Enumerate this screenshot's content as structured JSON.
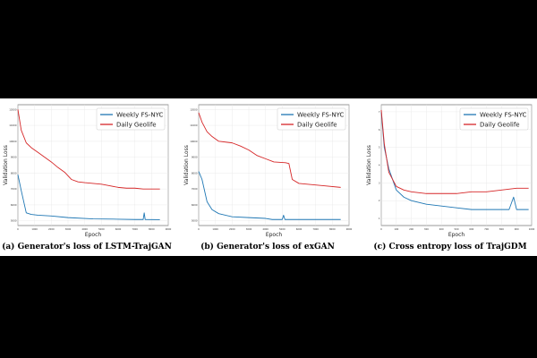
{
  "colors": {
    "weekly": "#1f77b4",
    "daily": "#d62728"
  },
  "charts": [
    {
      "caption": "(a) Generator's loss of LSTM-TrajGAN"
    },
    {
      "caption": "(b) Generator's loss of exGAN"
    },
    {
      "caption": "(c) Cross entropy loss of TrajGDM"
    }
  ],
  "chart_data": [
    {
      "type": "line",
      "xlabel": "Epoch",
      "ylabel": "Validation Loss",
      "xlim": [
        0,
        9000
      ],
      "ylim": [
        4700,
        12300
      ],
      "xticks": [
        0,
        1000,
        2000,
        3000,
        4000,
        5000,
        6000,
        7000,
        8000,
        9000
      ],
      "yticks": [
        5000,
        6000,
        7000,
        8000,
        9000,
        10000,
        11000,
        12000
      ],
      "legend": "top-right",
      "grid": true,
      "series": [
        {
          "name": "Weekly FS-NYC",
          "x": [
            0,
            200,
            500,
            800,
            1200,
            2000,
            3000,
            4500,
            6000,
            7000,
            7500,
            7560,
            7620,
            8500
          ],
          "y": [
            7900,
            6900,
            5500,
            5400,
            5350,
            5300,
            5200,
            5120,
            5100,
            5080,
            5080,
            5500,
            5080,
            5070
          ]
        },
        {
          "name": "Daily Geolife",
          "x": [
            0,
            200,
            500,
            800,
            1200,
            1600,
            2000,
            2400,
            2800,
            3200,
            3600,
            4000,
            4500,
            5000,
            5500,
            6000,
            6500,
            7000,
            7500,
            8000,
            8500
          ],
          "y": [
            12000,
            10700,
            9900,
            9600,
            9300,
            9000,
            8700,
            8350,
            8050,
            7600,
            7450,
            7400,
            7350,
            7300,
            7200,
            7100,
            7050,
            7050,
            7000,
            7000,
            7000
          ]
        }
      ]
    },
    {
      "type": "line",
      "xlabel": "Epoch",
      "ylabel": "Validation Loss",
      "xlim": [
        0,
        9000
      ],
      "ylim": [
        4700,
        12300
      ],
      "xticks": [
        0,
        1000,
        2000,
        3000,
        4000,
        5000,
        6000,
        7000,
        8000,
        9000
      ],
      "yticks": [
        5000,
        6000,
        7000,
        8000,
        9000,
        10000,
        11000,
        12000
      ],
      "legend": "top-right",
      "grid": true,
      "series": [
        {
          "name": "Weekly FS-NYC",
          "x": [
            0,
            200,
            500,
            800,
            1200,
            2000,
            3000,
            4000,
            4400,
            5000,
            5080,
            5160,
            6000,
            7000,
            8500
          ],
          "y": [
            8100,
            7600,
            6200,
            5700,
            5450,
            5250,
            5200,
            5150,
            5080,
            5080,
            5350,
            5080,
            5080,
            5080,
            5080
          ]
        },
        {
          "name": "Daily Geolife",
          "x": [
            0,
            200,
            500,
            800,
            1200,
            2000,
            2500,
            3000,
            3500,
            4000,
            4500,
            5200,
            5400,
            5600,
            6000,
            6500,
            7000,
            7500,
            8500
          ],
          "y": [
            11800,
            11200,
            10600,
            10300,
            10000,
            9900,
            9700,
            9450,
            9100,
            8900,
            8700,
            8650,
            8600,
            7600,
            7350,
            7300,
            7250,
            7200,
            7100
          ]
        }
      ]
    },
    {
      "type": "line",
      "xlabel": "Epoch",
      "ylabel": "Validation Loss",
      "xlim": [
        0,
        1000
      ],
      "ylim": [
        0.6,
        7.4
      ],
      "xticks": [
        0,
        100,
        200,
        300,
        400,
        500,
        600,
        700,
        800,
        900,
        1000
      ],
      "yticks": [
        1,
        2,
        3,
        4,
        5,
        6,
        7
      ],
      "legend": "top-right",
      "grid": true,
      "series": [
        {
          "name": "Weekly FS-NYC",
          "x": [
            0,
            20,
            50,
            100,
            150,
            200,
            300,
            400,
            500,
            600,
            700,
            800,
            850,
            880,
            900,
            950,
            980
          ],
          "y": [
            7.0,
            5.0,
            3.8,
            2.6,
            2.2,
            2.0,
            1.8,
            1.7,
            1.6,
            1.5,
            1.5,
            1.5,
            1.5,
            2.2,
            1.5,
            1.5,
            1.5
          ]
        },
        {
          "name": "Daily Geolife",
          "x": [
            0,
            20,
            50,
            100,
            150,
            200,
            300,
            400,
            500,
            600,
            700,
            800,
            900,
            980
          ],
          "y": [
            7.1,
            5.2,
            3.6,
            2.8,
            2.6,
            2.5,
            2.4,
            2.4,
            2.4,
            2.5,
            2.5,
            2.6,
            2.7,
            2.7
          ]
        }
      ]
    }
  ]
}
